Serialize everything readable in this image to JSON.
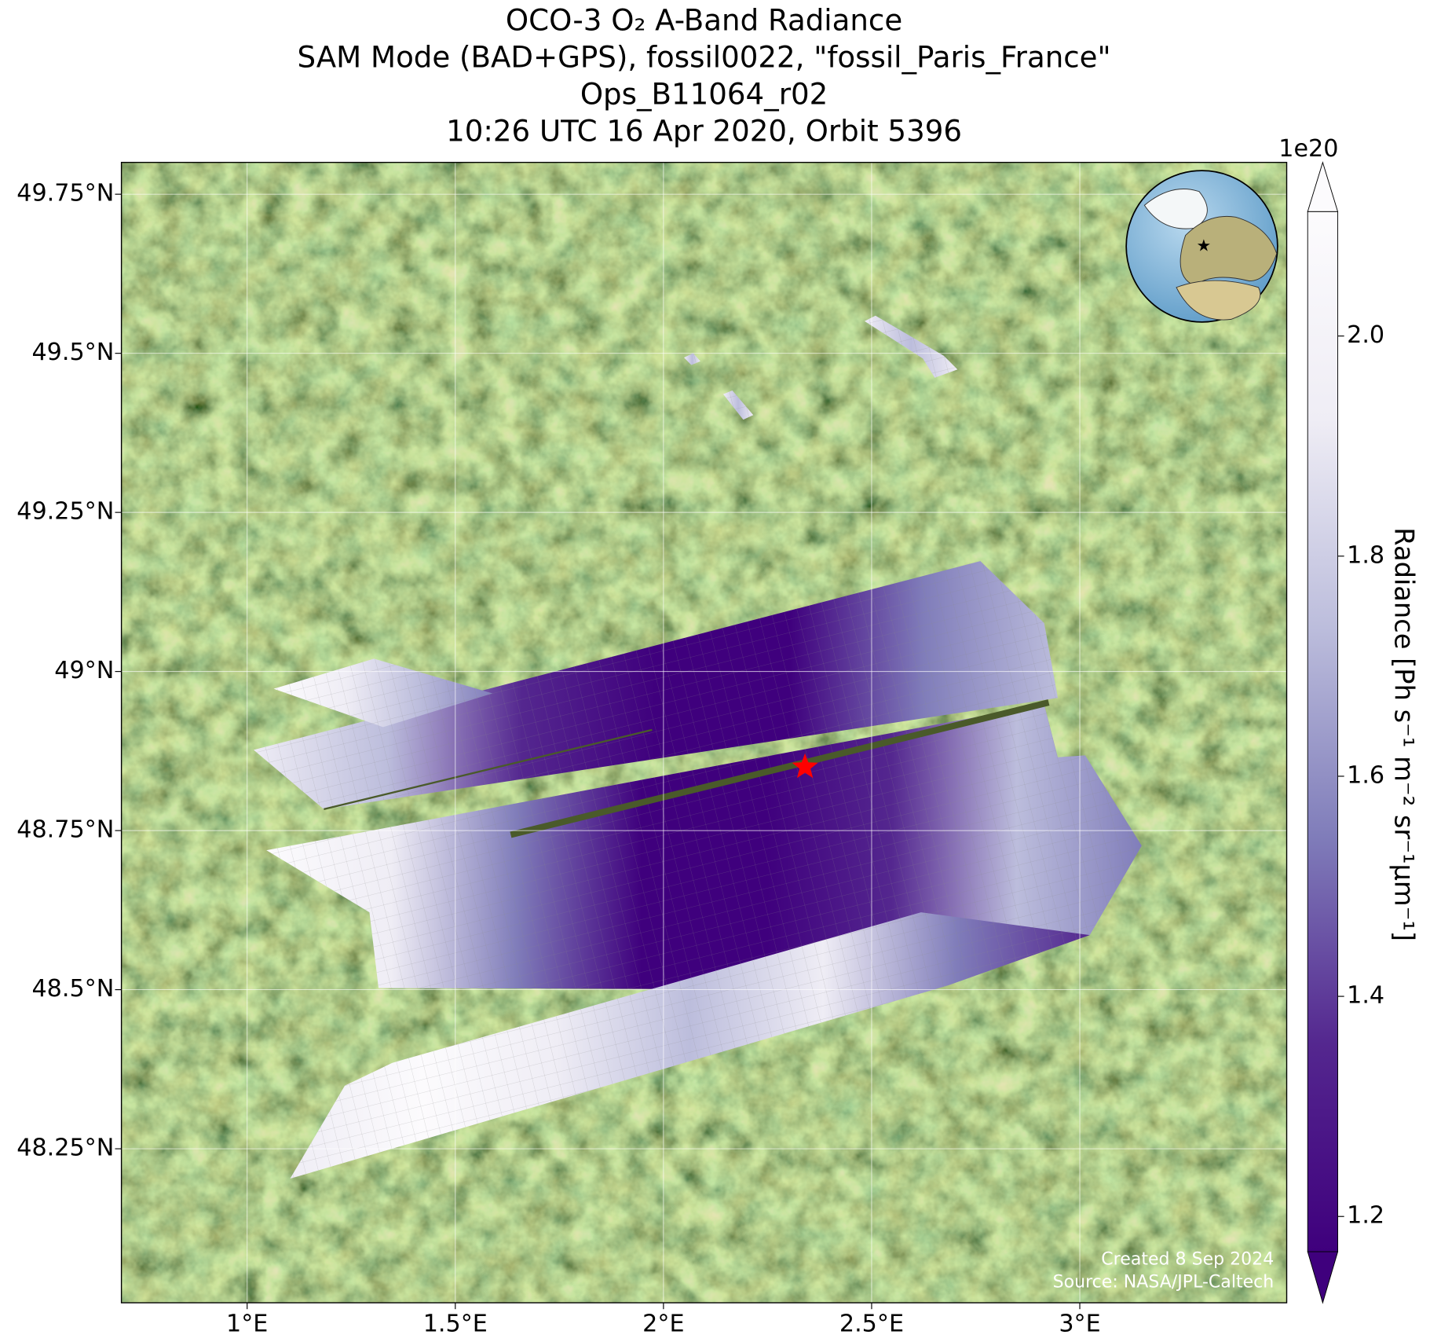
{
  "map": {
    "title": [
      "OCO-3 O₂ A-Band Radiance",
      "SAM Mode (BAD+GPS), fossil0022, \"fossil_Paris_France\"",
      "Ops_B11064_r02",
      "10:26 UTC 16 Apr 2020, Orbit 5396"
    ],
    "xlim": [
      0.698,
      3.497
    ],
    "ylim": [
      48.008,
      49.8
    ],
    "xticks": [
      {
        "value": 1,
        "label": "1°E"
      },
      {
        "value": 1.5,
        "label": "1.5°E"
      },
      {
        "value": 2,
        "label": "2°E"
      },
      {
        "value": 2.5,
        "label": "2.5°E"
      },
      {
        "value": 3,
        "label": "3°E"
      }
    ],
    "yticks": [
      {
        "value": 48.25,
        "label": "48.25°N"
      },
      {
        "value": 48.5,
        "label": "48.5°N"
      },
      {
        "value": 48.75,
        "label": "48.75°N"
      },
      {
        "value": 49,
        "label": "49°N"
      },
      {
        "value": 49.25,
        "label": "49.25°N"
      },
      {
        "value": 49.5,
        "label": "49.5°N"
      },
      {
        "value": 49.75,
        "label": "49.75°N"
      }
    ],
    "grid": true,
    "target": {
      "lon": 2.34,
      "lat": 48.85,
      "color": "#ff0000"
    },
    "colorbar": {
      "label": "Radiance [Ph s⁻¹ m⁻² sr⁻¹μm⁻¹]",
      "offset_label": "1e20",
      "clim": [
        1.168,
        2.113
      ],
      "ticks": [
        1.2,
        1.4,
        1.6,
        1.8,
        {
          "value": 2,
          "label": "2.0"
        }
      ],
      "colors": [
        "#3f007d",
        "#54278f",
        "#807dba",
        "#bcbddc",
        "#efedf5",
        "#fcfbfd"
      ]
    },
    "annotations": [
      "Created 8 Sep 2024",
      "Source: NASA/JPL-Caltech"
    ]
  }
}
